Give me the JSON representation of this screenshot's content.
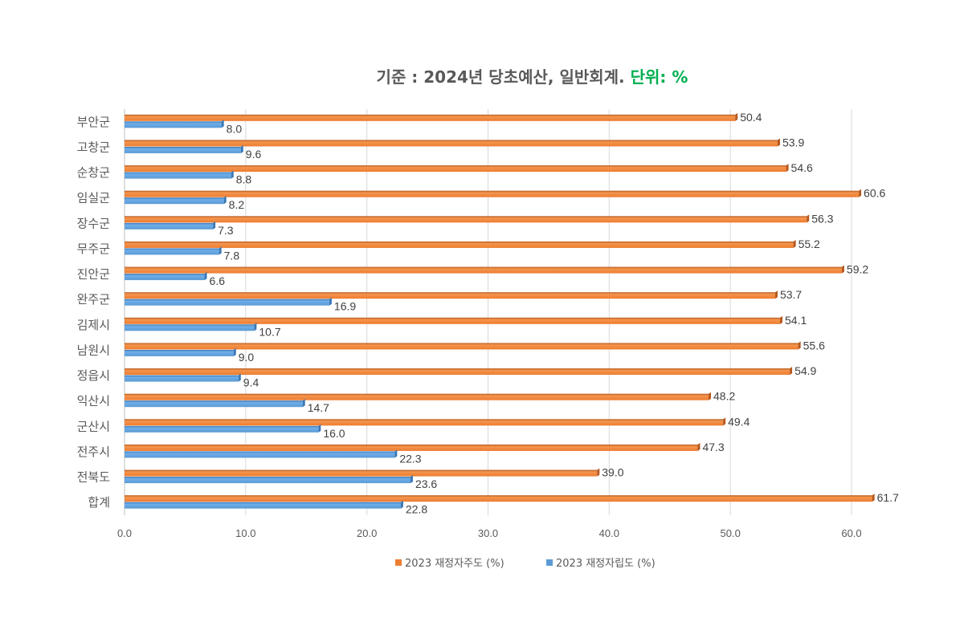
{
  "chart_data": {
    "type": "bar",
    "orientation": "horizontal",
    "title": {
      "main": "기준 : 2024년 당초예산, 일반회계.",
      "unit": "단위: %"
    },
    "categories": [
      "부안군",
      "고창군",
      "순창군",
      "임실군",
      "장수군",
      "무주군",
      "진안군",
      "완주군",
      "김제시",
      "남원시",
      "정읍시",
      "익산시",
      "군산시",
      "전주시",
      "전북도",
      "합계"
    ],
    "series": [
      {
        "name": "2023 재정자주도 (%)",
        "color": "#ED7D31",
        "values": [
          50.4,
          53.9,
          54.6,
          60.6,
          56.3,
          55.2,
          59.2,
          53.7,
          54.1,
          55.6,
          54.9,
          48.2,
          49.4,
          47.3,
          39.0,
          61.7
        ]
      },
      {
        "name": "2023 재정자립도 (%)",
        "color": "#5B9BD5",
        "values": [
          8.0,
          9.6,
          8.8,
          8.2,
          7.3,
          7.8,
          6.6,
          16.9,
          10.7,
          9.0,
          9.4,
          14.7,
          16.0,
          22.3,
          23.6,
          22.8
        ]
      }
    ],
    "xlim": [
      0,
      60
    ],
    "xticks": [
      "0.0",
      "10.0",
      "20.0",
      "30.0",
      "40.0",
      "50.0",
      "60.0"
    ],
    "grid": true,
    "legend": "bottom"
  }
}
